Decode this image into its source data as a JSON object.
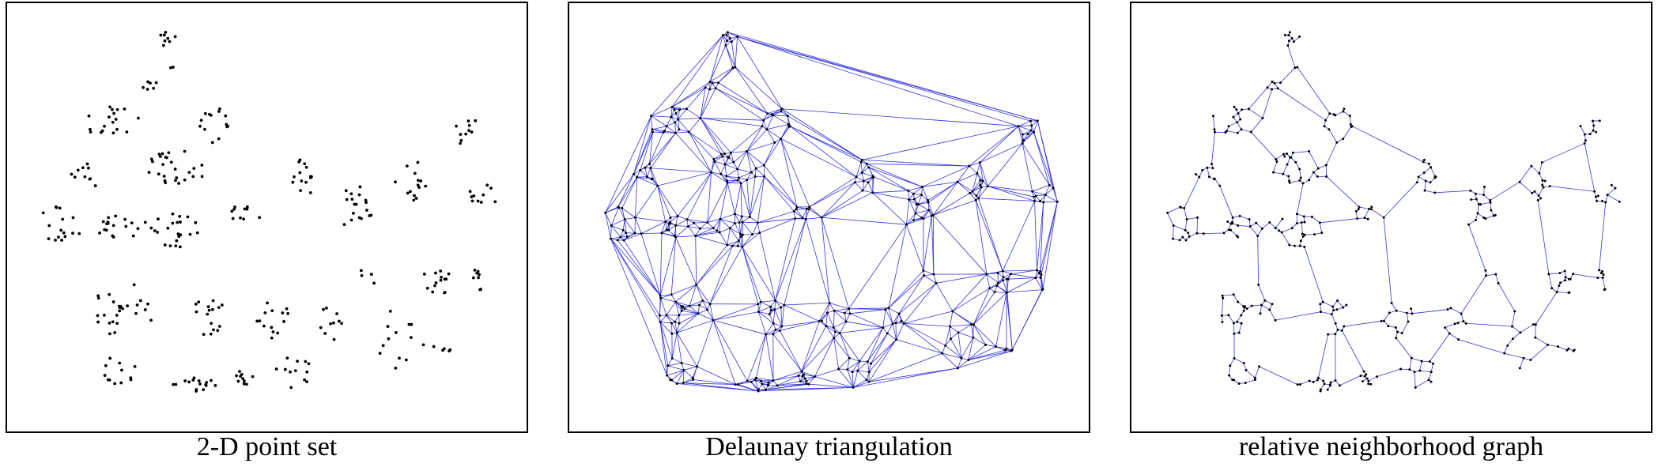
{
  "panels": [
    {
      "caption": "2-D point set",
      "mode": "points"
    },
    {
      "caption": "Delaunay triangulation",
      "mode": "delaunay"
    },
    {
      "caption": "relative neighborhood graph",
      "mode": "rng"
    }
  ],
  "colors": {
    "point": "#000000",
    "edge": "#3333dd",
    "frame": "#000000"
  }
}
